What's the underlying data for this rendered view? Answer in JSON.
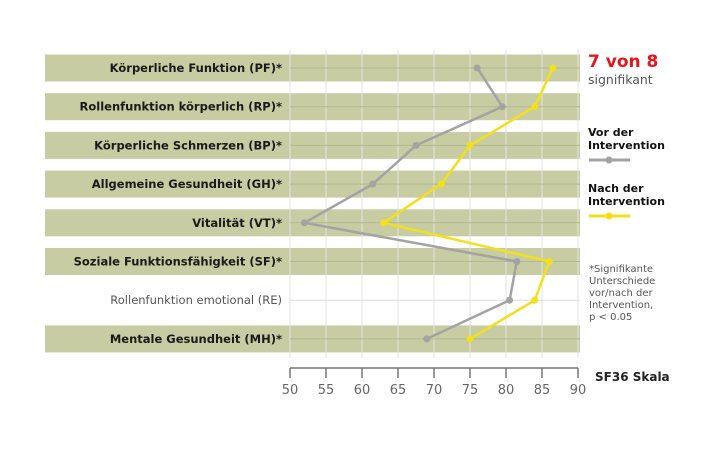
{
  "chart_data": {
    "type": "line",
    "orientation": "horizontal-categories",
    "categories": [
      "Körperliche Funktion (PF)*",
      "Rollenfunktion körperlich (RP)*",
      "Körperliche Schmerzen (BP)*",
      "Allgemeine Gesundheit (GH)*",
      "Vitalität (VT)*",
      "Soziale Funktionsfähigkeit (SF)*",
      "Rollenfunktion emotional (RE)",
      "Mentale Gesundheit (MH)*"
    ],
    "significant": [
      true,
      true,
      true,
      true,
      true,
      true,
      false,
      true
    ],
    "series": [
      {
        "name": "Vor der Intervention",
        "color": "#a3a3a3",
        "values": [
          76,
          79.5,
          67.5,
          61.5,
          52,
          81.5,
          80.5,
          69
        ]
      },
      {
        "name": "Nach der Intervention",
        "color": "#f2e01a",
        "values": [
          86.5,
          84,
          75,
          71,
          63,
          86,
          84,
          75
        ]
      }
    ],
    "xlabel": "SF36 Skala",
    "xlim": [
      50,
      90
    ],
    "xticks": [
      50,
      55,
      60,
      65,
      70,
      75,
      80,
      85,
      90
    ],
    "grid": true,
    "band_color": "#c8cca2",
    "legend_position": "right"
  },
  "summary": {
    "headline": "7 von 8",
    "headline_color": "#e8141c",
    "subline": "signifikant"
  },
  "legend": {
    "before": {
      "line1": "Vor der",
      "line2": "Intervention"
    },
    "after": {
      "line1": "Nach der",
      "line2": "Intervention"
    }
  },
  "footnote": [
    "*Signifikante",
    "Unterschiede",
    "vor/nach der",
    "Intervention,",
    "p < 0.05"
  ],
  "axis": {
    "title": "SF36 Skala"
  }
}
